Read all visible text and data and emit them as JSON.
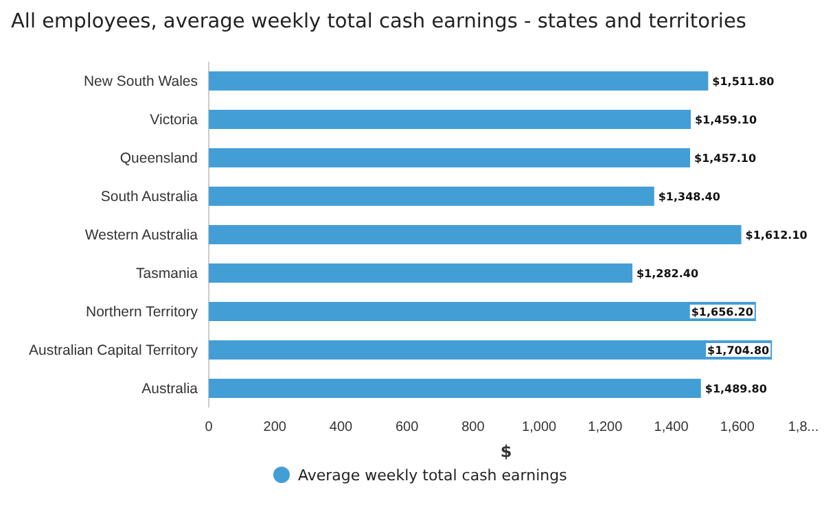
{
  "chart_data": {
    "type": "bar",
    "orientation": "horizontal",
    "title": "All employees, average weekly total cash earnings - states and territories",
    "categories": [
      "New South Wales",
      "Victoria",
      "Queensland",
      "South Australia",
      "Western Australia",
      "Tasmania",
      "Northern Territory",
      "Australian Capital Territory",
      "Australia"
    ],
    "series": [
      {
        "name": "Average weekly total cash earnings",
        "color": "#449ed6",
        "values": [
          1511.8,
          1459.1,
          1457.1,
          1348.4,
          1612.1,
          1282.4,
          1656.2,
          1704.8,
          1489.8
        ],
        "value_labels": [
          "$1,511.80",
          "$1,459.10",
          "$1,457.10",
          "$1,348.40",
          "$1,612.10",
          "$1,282.40",
          "$1,656.20",
          "$1,704.80",
          "$1,489.80"
        ]
      }
    ],
    "xlim": [
      0,
      1800
    ],
    "xticks": [
      0,
      200,
      400,
      {
        "value": 600,
        "label": "600"
      },
      {
        "value": 800,
        "label": "800"
      },
      {
        "value": 1000,
        "label": "1,000"
      },
      {
        "value": 1200,
        "label": "1,200"
      },
      {
        "value": 1400,
        "label": "1,400"
      },
      {
        "value": 1600,
        "label": "1,600"
      },
      {
        "value": 1800,
        "label": "1,8..."
      }
    ],
    "xlabel": "$",
    "legend": "bottom",
    "grid": false
  }
}
